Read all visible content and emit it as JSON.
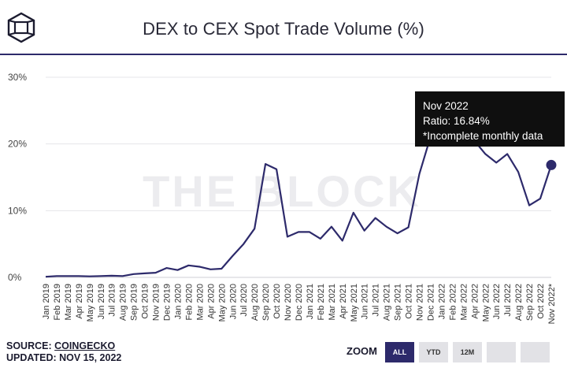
{
  "header": {
    "title": "DEX to CEX Spot Trade Volume (%)",
    "logo_icon": "the-block-cube-logo"
  },
  "watermark": "THE BLOCK",
  "tooltip": {
    "line1": "Nov 2022",
    "line2": "Ratio: 16.84%",
    "line3": "*Incomplete monthly data"
  },
  "footer": {
    "source_prefix": "SOURCE: ",
    "source_link": "COINGECKO",
    "updated": "UPDATED: NOV 15, 2022"
  },
  "zoom": {
    "label": "ZOOM",
    "buttons": [
      "ALL",
      "YTD",
      "12M",
      "",
      "",
      ""
    ],
    "active": "ALL"
  },
  "colors": {
    "line": "#2d2a6b",
    "accent": "#2d2a6b",
    "tooltip_bg": "#0f0f0f"
  },
  "chart_data": {
    "type": "line",
    "title": "DEX to CEX Spot Trade Volume (%)",
    "xlabel": "",
    "ylabel": "",
    "ylim": [
      0,
      30
    ],
    "yticks": [
      "0%",
      "10%",
      "20%",
      "30%"
    ],
    "grid": true,
    "x": [
      "Jan 2019",
      "Feb 2019",
      "Mar 2019",
      "Apr 2019",
      "May 2019",
      "Jun 2019",
      "Jul 2019",
      "Aug 2019",
      "Sep 2019",
      "Oct 2019",
      "Nov 2019",
      "Dec 2019",
      "Jan 2020",
      "Feb 2020",
      "Mar 2020",
      "Apr 2020",
      "May 2020",
      "Jun 2020",
      "Jul 2020",
      "Aug 2020",
      "Sep 2020",
      "Oct 2020",
      "Nov 2020",
      "Dec 2020",
      "Jan 2021",
      "Feb 2021",
      "Mar 2021",
      "Apr 2021",
      "May 2021",
      "Jun 2021",
      "Jul 2021",
      "Aug 2021",
      "Sep 2021",
      "Oct 2021",
      "Nov 2021",
      "Dec 2021",
      "Jan 2022",
      "Feb 2022",
      "Mar 2022",
      "Apr 2022",
      "May 2022",
      "Jun 2022",
      "Jul 2022",
      "Aug 2022",
      "Sep 2022",
      "Oct 2022",
      "Nov 2022*"
    ],
    "series": [
      {
        "values": [
          0.1,
          0.2,
          0.2,
          0.2,
          0.15,
          0.2,
          0.25,
          0.2,
          0.5,
          0.6,
          0.7,
          1.4,
          1.1,
          1.8,
          1.6,
          1.2,
          1.3,
          3.2,
          5.0,
          7.3,
          17.0,
          16.2,
          6.1,
          6.8,
          6.8,
          5.8,
          7.6,
          5.5,
          9.7,
          7.0,
          8.9,
          7.6,
          6.6,
          7.5,
          15.5,
          21.0,
          23.0,
          22.5,
          21.5,
          20.5,
          18.5,
          17.2,
          18.5,
          15.8,
          10.8,
          11.8,
          16.84
        ]
      }
    ],
    "highlight": {
      "x": "Nov 2022*",
      "value": 16.84
    }
  }
}
